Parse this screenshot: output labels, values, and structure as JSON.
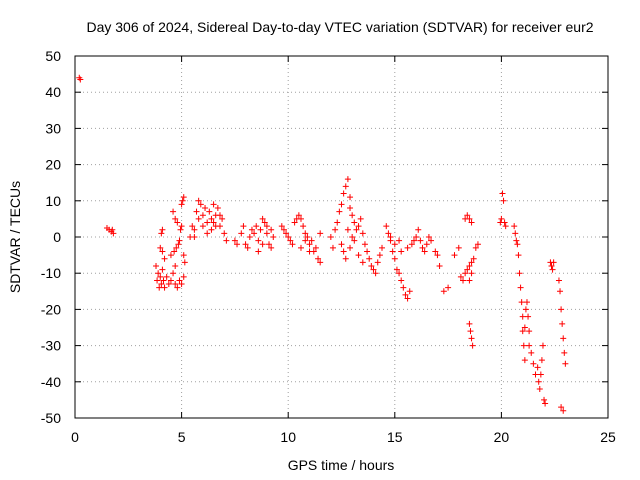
{
  "chart_data": {
    "type": "scatter",
    "title": "Day 306 of 2024, Sidereal Day-to-day VTEC variation (SDTVAR) for receiver eur2",
    "xlabel": "GPS time / hours",
    "ylabel": "SDTVAR / TECUs",
    "xlim": [
      0,
      25
    ],
    "ylim": [
      -50,
      50
    ],
    "x_ticks": [
      0,
      5,
      10,
      15,
      20,
      25
    ],
    "y_ticks": [
      -50,
      -40,
      -30,
      -20,
      -10,
      0,
      10,
      20,
      30,
      40,
      50
    ],
    "x_tick_labels": [
      "0",
      "5",
      "10",
      "15",
      "20",
      "25"
    ],
    "y_tick_labels": [
      "-50",
      "-40",
      "-30",
      "-20",
      "-10",
      "0",
      "10",
      "20",
      "30",
      "40",
      "50"
    ],
    "grid": true,
    "marker": "plus",
    "series": [
      {
        "name": "SDTVAR eur2",
        "color": "#ff0000",
        "points": [
          [
            0.2,
            44
          ],
          [
            0.25,
            43.5
          ],
          [
            1.5,
            2.5
          ],
          [
            1.6,
            2
          ],
          [
            1.7,
            1.5
          ],
          [
            1.75,
            2
          ],
          [
            1.8,
            1
          ],
          [
            3.8,
            -8
          ],
          [
            3.85,
            -12
          ],
          [
            3.9,
            -10
          ],
          [
            3.95,
            -14
          ],
          [
            4.0,
            -11
          ],
          [
            4.05,
            -13
          ],
          [
            4.1,
            -9
          ],
          [
            4.15,
            -12
          ],
          [
            4.2,
            -14
          ],
          [
            4.3,
            -11
          ],
          [
            4.4,
            -13
          ],
          [
            4.5,
            -12
          ],
          [
            4.6,
            -10
          ],
          [
            4.7,
            -13
          ],
          [
            4.8,
            -14
          ],
          [
            4.9,
            -12
          ],
          [
            5.0,
            -13
          ],
          [
            5.1,
            -11
          ],
          [
            4.1,
            -4
          ],
          [
            4.2,
            -6
          ],
          [
            4.0,
            -3
          ],
          [
            4.1,
            2
          ],
          [
            4.05,
            1
          ],
          [
            4.6,
            7
          ],
          [
            4.7,
            5
          ],
          [
            4.8,
            4
          ],
          [
            4.65,
            -4
          ],
          [
            4.75,
            -3
          ],
          [
            4.85,
            -2
          ],
          [
            4.9,
            -1
          ],
          [
            4.95,
            2
          ],
          [
            5.0,
            3
          ],
          [
            5.0,
            9
          ],
          [
            5.05,
            10
          ],
          [
            5.1,
            11
          ],
          [
            5.1,
            -5
          ],
          [
            5.15,
            -7
          ],
          [
            4.5,
            -5
          ],
          [
            4.7,
            -8
          ],
          [
            5.4,
            0
          ],
          [
            5.5,
            3
          ],
          [
            5.6,
            2
          ],
          [
            5.7,
            7
          ],
          [
            5.8,
            5
          ],
          [
            5.9,
            9
          ],
          [
            6.0,
            6
          ],
          [
            6.1,
            8
          ],
          [
            6.2,
            4
          ],
          [
            6.3,
            7
          ],
          [
            6.4,
            5
          ],
          [
            6.5,
            9
          ],
          [
            6.6,
            6
          ],
          [
            6.7,
            8
          ],
          [
            6.8,
            3
          ],
          [
            6.9,
            5
          ],
          [
            7.0,
            1
          ],
          [
            7.1,
            -1
          ],
          [
            5.6,
            0
          ],
          [
            6.0,
            3
          ],
          [
            6.2,
            1
          ],
          [
            6.4,
            2
          ],
          [
            6.8,
            6
          ],
          [
            5.8,
            10
          ],
          [
            6.6,
            3
          ],
          [
            6.5,
            4
          ],
          [
            7.5,
            -1
          ],
          [
            7.6,
            -2
          ],
          [
            7.8,
            1
          ],
          [
            7.9,
            3
          ],
          [
            8.0,
            -2
          ],
          [
            8.1,
            -3
          ],
          [
            8.2,
            0
          ],
          [
            8.3,
            2
          ],
          [
            8.4,
            1
          ],
          [
            8.5,
            3
          ],
          [
            8.6,
            -1
          ],
          [
            8.7,
            2
          ],
          [
            8.8,
            5
          ],
          [
            8.9,
            4
          ],
          [
            9.0,
            1
          ],
          [
            9.1,
            -2
          ],
          [
            9.2,
            -3
          ],
          [
            9.3,
            0
          ],
          [
            8.6,
            -4
          ],
          [
            8.8,
            -2
          ],
          [
            9.0,
            3
          ],
          [
            9.2,
            2
          ],
          [
            9.7,
            3
          ],
          [
            9.8,
            2
          ],
          [
            9.9,
            1
          ],
          [
            10.0,
            0
          ],
          [
            10.1,
            -1
          ],
          [
            10.2,
            -2
          ],
          [
            10.3,
            4
          ],
          [
            10.4,
            5
          ],
          [
            10.5,
            6
          ],
          [
            10.6,
            5
          ],
          [
            10.7,
            3
          ],
          [
            10.8,
            1
          ],
          [
            10.9,
            0
          ],
          [
            11.0,
            -2
          ],
          [
            11.1,
            -1
          ],
          [
            11.2,
            -4
          ],
          [
            11.3,
            -3
          ],
          [
            11.4,
            -6
          ],
          [
            11.5,
            -7
          ],
          [
            10.6,
            -3
          ],
          [
            10.8,
            -1
          ],
          [
            11.0,
            -4
          ],
          [
            11.5,
            1
          ],
          [
            12.0,
            0
          ],
          [
            12.1,
            -3
          ],
          [
            12.2,
            2
          ],
          [
            12.3,
            4
          ],
          [
            12.4,
            7
          ],
          [
            12.5,
            9
          ],
          [
            12.6,
            12
          ],
          [
            12.7,
            14
          ],
          [
            12.8,
            16
          ],
          [
            12.9,
            11
          ],
          [
            13.0,
            6
          ],
          [
            13.1,
            4
          ],
          [
            13.2,
            2
          ],
          [
            13.3,
            3
          ],
          [
            13.4,
            5
          ],
          [
            13.5,
            1
          ],
          [
            13.6,
            -2
          ],
          [
            13.7,
            -4
          ],
          [
            13.8,
            -6
          ],
          [
            13.9,
            -8
          ],
          [
            14.0,
            -9
          ],
          [
            14.1,
            -10
          ],
          [
            14.2,
            -7
          ],
          [
            14.3,
            -5
          ],
          [
            14.4,
            -3
          ],
          [
            12.5,
            -2
          ],
          [
            12.7,
            -6
          ],
          [
            12.9,
            -3
          ],
          [
            13.1,
            -1
          ],
          [
            13.3,
            -5
          ],
          [
            13.5,
            -7
          ],
          [
            13.0,
            0
          ],
          [
            12.8,
            2
          ],
          [
            12.6,
            -4
          ],
          [
            12.9,
            8
          ],
          [
            14.6,
            3
          ],
          [
            14.7,
            1
          ],
          [
            14.8,
            -1
          ],
          [
            14.9,
            -4
          ],
          [
            15.0,
            -6
          ],
          [
            15.1,
            -9
          ],
          [
            15.2,
            -10
          ],
          [
            15.3,
            -12
          ],
          [
            15.4,
            -14
          ],
          [
            15.5,
            -16
          ],
          [
            15.6,
            -17
          ],
          [
            15.7,
            -15
          ],
          [
            15.8,
            -2
          ],
          [
            15.9,
            -1
          ],
          [
            16.0,
            0
          ],
          [
            16.1,
            2
          ],
          [
            16.2,
            -1
          ],
          [
            16.3,
            -3
          ],
          [
            16.4,
            -4
          ],
          [
            16.5,
            -2
          ],
          [
            16.6,
            0
          ],
          [
            16.7,
            -1
          ],
          [
            15.0,
            -2
          ],
          [
            15.3,
            -4
          ],
          [
            15.6,
            -3
          ],
          [
            14.8,
            0
          ],
          [
            15.2,
            -1
          ],
          [
            16.9,
            -4
          ],
          [
            17.0,
            -5
          ],
          [
            17.1,
            -8
          ],
          [
            17.3,
            -15
          ],
          [
            17.5,
            -14
          ],
          [
            17.8,
            -5
          ],
          [
            18.0,
            -3
          ],
          [
            18.1,
            -11
          ],
          [
            18.2,
            -12
          ],
          [
            18.3,
            -10
          ],
          [
            18.4,
            -9
          ],
          [
            18.5,
            -8
          ],
          [
            18.6,
            -7
          ],
          [
            18.7,
            -6
          ],
          [
            18.8,
            -3
          ],
          [
            18.9,
            -2
          ],
          [
            18.5,
            -12
          ],
          [
            18.6,
            -10
          ],
          [
            18.3,
            5
          ],
          [
            18.4,
            6
          ],
          [
            18.5,
            5
          ],
          [
            18.6,
            4
          ],
          [
            18.5,
            -24
          ],
          [
            18.55,
            -26
          ],
          [
            18.6,
            -28
          ],
          [
            18.65,
            -30
          ],
          [
            19.95,
            4
          ],
          [
            20.0,
            5
          ],
          [
            20.05,
            12
          ],
          [
            20.1,
            10
          ],
          [
            20.15,
            4
          ],
          [
            20.2,
            3
          ],
          [
            20.6,
            3
          ],
          [
            20.65,
            1
          ],
          [
            20.7,
            -1
          ],
          [
            20.75,
            -2
          ],
          [
            20.8,
            -5
          ],
          [
            20.85,
            -10
          ],
          [
            20.9,
            -14
          ],
          [
            20.95,
            -18
          ],
          [
            21.0,
            -22
          ],
          [
            21.0,
            -26
          ],
          [
            21.05,
            -30
          ],
          [
            21.1,
            -34
          ],
          [
            21.1,
            -25
          ],
          [
            21.15,
            -20
          ],
          [
            21.2,
            -18
          ],
          [
            21.25,
            -22
          ],
          [
            21.3,
            -26
          ],
          [
            21.3,
            -30
          ],
          [
            21.4,
            -32
          ],
          [
            21.5,
            -35
          ],
          [
            21.6,
            -38
          ],
          [
            21.7,
            -36
          ],
          [
            21.75,
            -40
          ],
          [
            21.8,
            -42
          ],
          [
            21.85,
            -38
          ],
          [
            21.9,
            -34
          ],
          [
            21.95,
            -30
          ],
          [
            22.0,
            -45
          ],
          [
            22.05,
            -46
          ],
          [
            22.3,
            -7
          ],
          [
            22.35,
            -8
          ],
          [
            22.4,
            -9
          ],
          [
            22.45,
            -7
          ],
          [
            22.7,
            -12
          ],
          [
            22.75,
            -15
          ],
          [
            22.8,
            -20
          ],
          [
            22.85,
            -24
          ],
          [
            22.9,
            -28
          ],
          [
            22.95,
            -32
          ],
          [
            23.0,
            -35
          ],
          [
            22.8,
            -47
          ],
          [
            22.9,
            -48
          ]
        ]
      }
    ]
  }
}
